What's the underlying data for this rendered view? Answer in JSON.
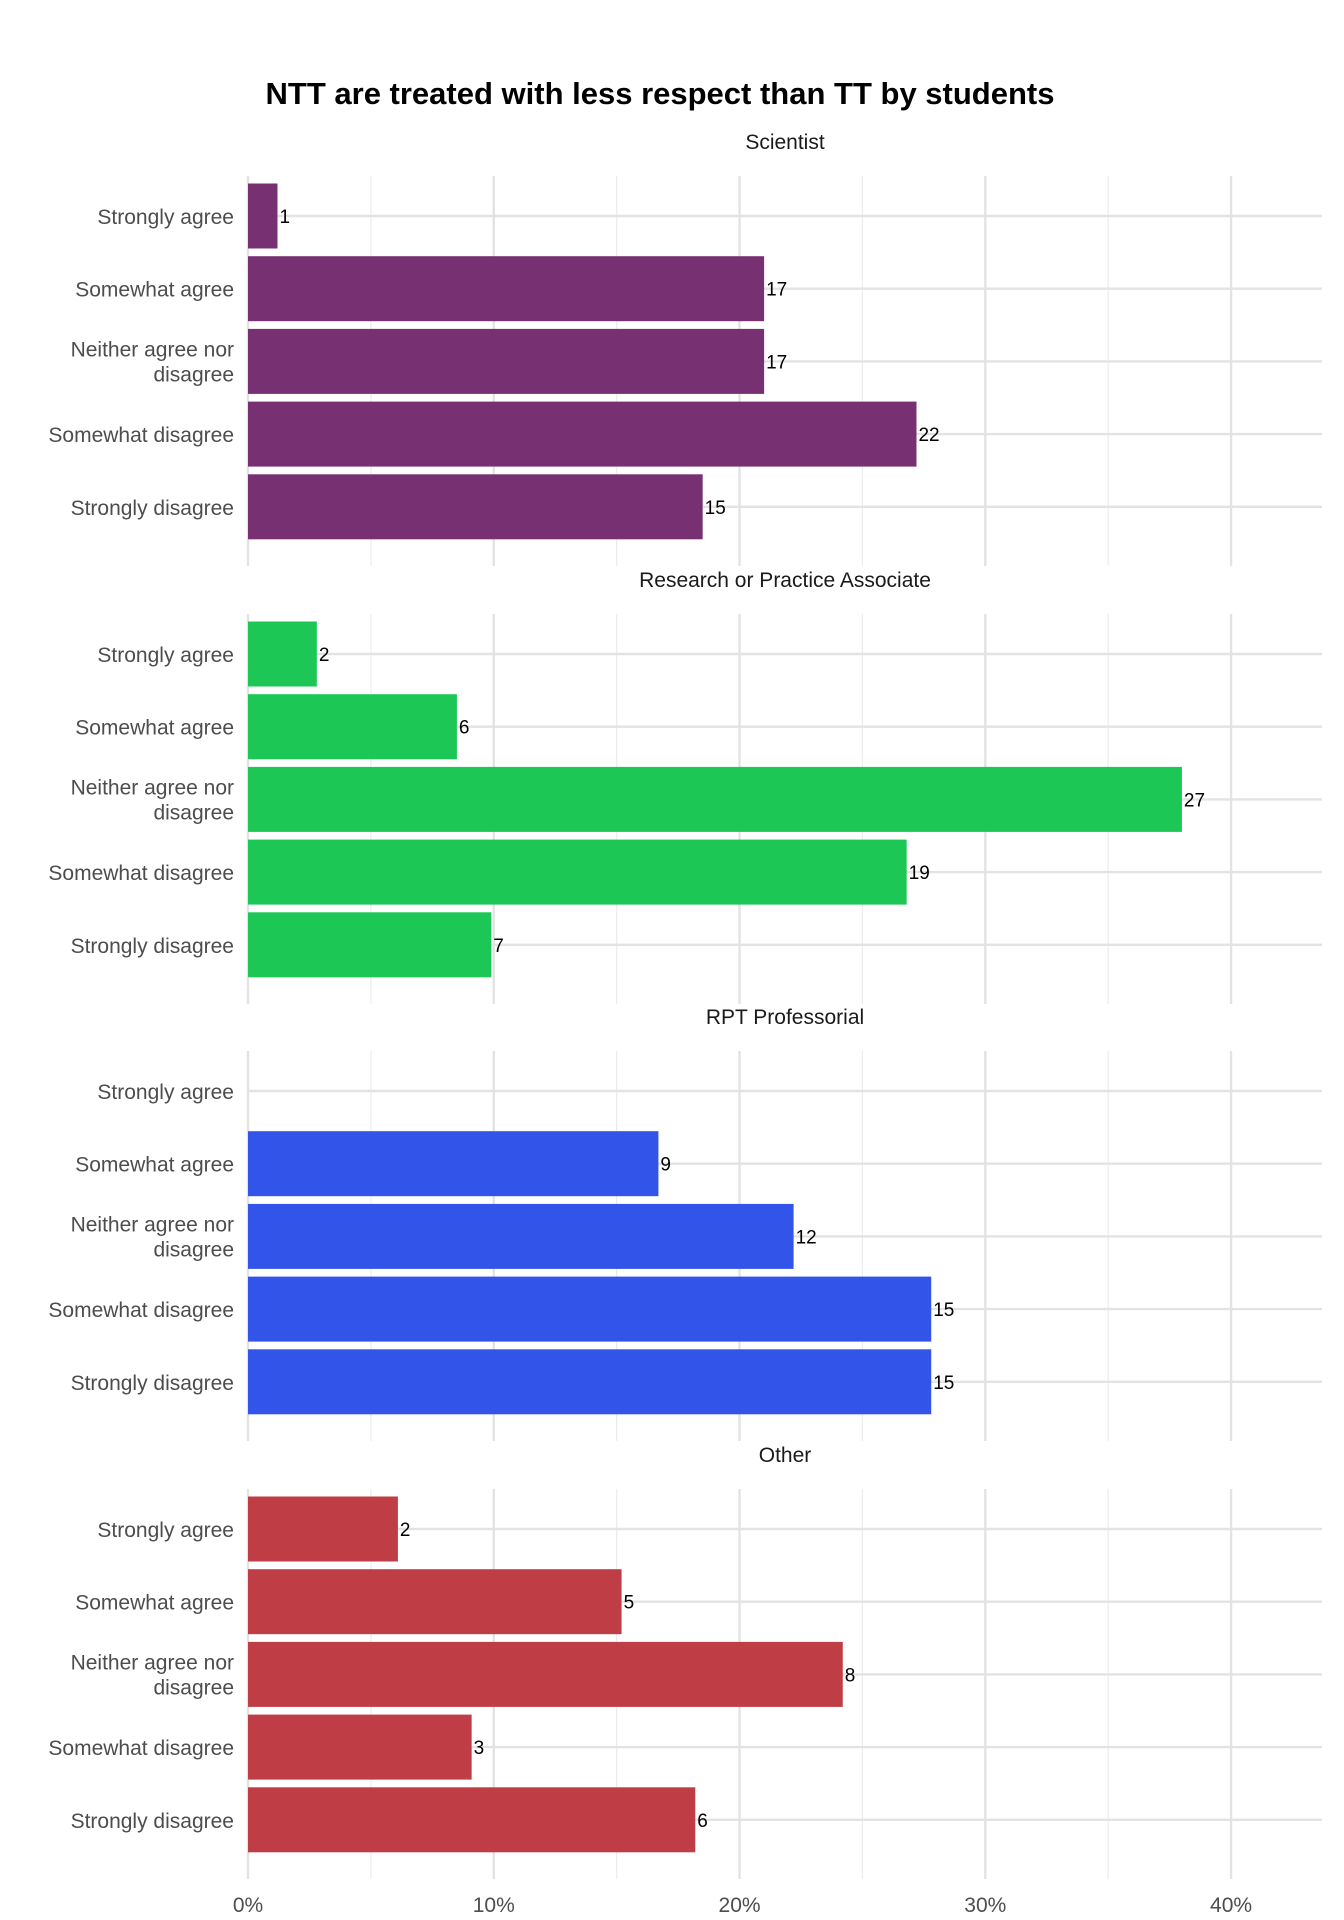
{
  "chart_data": {
    "type": "bar",
    "orientation": "horizontal",
    "title": "NTT are treated with less respect than TT by students",
    "categories": [
      "Strongly agree",
      "Somewhat agree",
      "Neither agree nor disagree",
      "Somewhat disagree",
      "Strongly disagree"
    ],
    "x_ticks": [
      "0%",
      "10%",
      "20%",
      "30%",
      "40%"
    ],
    "xlim": [
      0,
      0.437
    ],
    "grid": true,
    "panels": [
      {
        "name": "Scientist",
        "color": "#773173",
        "counts": [
          1,
          17,
          17,
          22,
          15
        ],
        "percent": [
          1.2,
          21.0,
          21.0,
          27.2,
          18.5
        ]
      },
      {
        "name": "Research or Practice Associate",
        "color": "#1dc755",
        "counts": [
          2,
          6,
          27,
          19,
          7
        ],
        "percent": [
          2.8,
          8.5,
          38.0,
          26.8,
          9.9
        ]
      },
      {
        "name": "RPT Professorial",
        "color": "#3354e8",
        "counts": [
          null,
          9,
          12,
          15,
          15
        ],
        "percent": [
          0,
          16.7,
          22.2,
          27.8,
          27.8
        ]
      },
      {
        "name": "Other",
        "color": "#bf3e45",
        "counts": [
          2,
          5,
          8,
          3,
          6
        ],
        "percent": [
          6.1,
          15.2,
          24.2,
          9.1,
          18.2
        ]
      }
    ]
  }
}
